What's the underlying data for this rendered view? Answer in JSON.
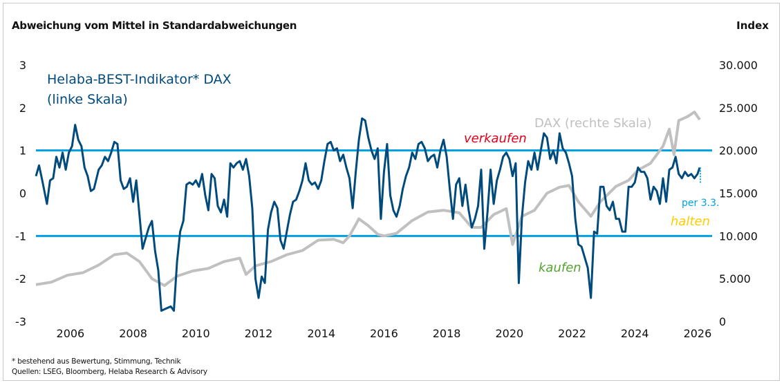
{
  "header": {
    "left_title": "Abweichung vom Mittel in Standardabweichungen",
    "right_title": "Index"
  },
  "footer": {
    "note": "* bestehend aus Bewertung, Stimmung, Technik",
    "sources": "Quellen: LSEG, Bloomberg, Helaba Research & Advisory"
  },
  "colors": {
    "indicator": "#004a7c",
    "dax": "#c0c0c0",
    "threshold": "#009fe3",
    "sell": "#e2001a",
    "buy": "#52a32f",
    "hold": "#ffcc00",
    "asof": "#009fe3"
  },
  "chart_data": {
    "type": "line",
    "title": "Helaba-BEST-Indikator* DAX vs. DAX",
    "xlabel": "",
    "ylabel_left": "Abweichung vom Mittel in Standardabweichungen",
    "ylabel_right": "Index",
    "xlim": [
      2005.0,
      2026.3
    ],
    "ylim_left": [
      -3,
      3
    ],
    "ylim_right": [
      0,
      30000
    ],
    "x_ticks": [
      "2006",
      "2008",
      "2010",
      "2012",
      "2014",
      "2016",
      "2018",
      "2020",
      "2022",
      "2024",
      "2026"
    ],
    "y_ticks_left": [
      "3",
      "2",
      "1",
      "0",
      "-1",
      "-2",
      "-3"
    ],
    "y_ticks_right": [
      "30.000",
      "25.000",
      "20.000",
      "15.000",
      "10.000",
      "5.000",
      "0"
    ],
    "grid": false,
    "thresholds": [
      {
        "value": 1,
        "axis": "left",
        "label": "verkaufen"
      },
      {
        "value": -1,
        "axis": "left",
        "label": "kaufen"
      }
    ],
    "annotations": {
      "indicator_label_line1": "Helaba-BEST-Indikator* DAX",
      "indicator_label_line2": "(linke Skala)",
      "dax_label": "DAX (rechte Skala)",
      "sell": "verkaufen",
      "buy": "kaufen",
      "hold": "halten",
      "asof": "per 3.3."
    },
    "series": [
      {
        "name": "Helaba-BEST-Indikator DAX (linke Skala)",
        "axis": "left",
        "x": [
          2005.0,
          2005.1,
          2005.2,
          2005.35,
          2005.45,
          2005.55,
          2005.65,
          2005.75,
          2005.85,
          2005.95,
          2006.05,
          2006.15,
          2006.25,
          2006.35,
          2006.45,
          2006.55,
          2006.65,
          2006.75,
          2006.85,
          2007.0,
          2007.1,
          2007.2,
          2007.3,
          2007.4,
          2007.5,
          2007.6,
          2007.7,
          2007.8,
          2007.9,
          2008.0,
          2008.1,
          2008.2,
          2008.3,
          2008.4,
          2008.5,
          2008.6,
          2008.7,
          2008.8,
          2008.9,
          2009.0,
          2009.15,
          2009.3,
          2009.4,
          2009.5,
          2009.6,
          2009.7,
          2009.8,
          2009.9,
          2010.0,
          2010.1,
          2010.2,
          2010.3,
          2010.4,
          2010.5,
          2010.6,
          2010.7,
          2010.8,
          2010.9,
          2011.0,
          2011.1,
          2011.2,
          2011.3,
          2011.4,
          2011.5,
          2011.6,
          2011.7,
          2011.8,
          2011.9,
          2012.0,
          2012.1,
          2012.2,
          2012.3,
          2012.4,
          2012.5,
          2012.6,
          2012.7,
          2012.8,
          2012.9,
          2013.0,
          2013.1,
          2013.2,
          2013.3,
          2013.4,
          2013.5,
          2013.6,
          2013.7,
          2013.8,
          2013.9,
          2014.0,
          2014.1,
          2014.2,
          2014.3,
          2014.4,
          2014.5,
          2014.6,
          2014.7,
          2014.8,
          2014.9,
          2015.0,
          2015.1,
          2015.2,
          2015.3,
          2015.4,
          2015.5,
          2015.6,
          2015.7,
          2015.8,
          2015.9,
          2016.0,
          2016.1,
          2016.2,
          2016.3,
          2016.4,
          2016.5,
          2016.6,
          2016.7,
          2016.8,
          2016.9,
          2017.0,
          2017.1,
          2017.2,
          2017.3,
          2017.4,
          2017.5,
          2017.6,
          2017.7,
          2017.8,
          2017.9,
          2018.0,
          2018.1,
          2018.2,
          2018.3,
          2018.4,
          2018.5,
          2018.6,
          2018.7,
          2018.8,
          2018.9,
          2019.0,
          2019.1,
          2019.2,
          2019.3,
          2019.4,
          2019.5,
          2019.6,
          2019.7,
          2019.8,
          2019.9,
          2020.0,
          2020.1,
          2020.2,
          2020.3,
          2020.4,
          2020.5,
          2020.6,
          2020.7,
          2020.8,
          2020.9,
          2021.0,
          2021.1,
          2021.2,
          2021.3,
          2021.4,
          2021.5,
          2021.6,
          2021.7,
          2021.8,
          2021.9,
          2022.0,
          2022.1,
          2022.2,
          2022.3,
          2022.4,
          2022.5,
          2022.6,
          2022.7,
          2022.8,
          2022.9,
          2023.0,
          2023.1,
          2023.2,
          2023.3,
          2023.4,
          2023.5,
          2023.6,
          2023.7,
          2023.8,
          2023.9,
          2024.0,
          2024.1,
          2024.2,
          2024.3,
          2024.4,
          2024.5,
          2024.6,
          2024.7,
          2024.8,
          2024.9,
          2025.0,
          2025.1,
          2025.2,
          2025.3,
          2025.4,
          2025.5,
          2025.6,
          2025.7,
          2025.8,
          2025.9,
          2026.0,
          2026.1,
          2026.17
        ],
        "values": [
          0.4,
          0.65,
          0.3,
          -0.25,
          0.3,
          0.35,
          0.85,
          0.6,
          0.95,
          0.55,
          0.95,
          1.1,
          1.6,
          1.25,
          1.1,
          0.6,
          0.4,
          0.05,
          0.1,
          0.55,
          0.65,
          0.85,
          0.75,
          0.95,
          1.2,
          1.15,
          0.3,
          0.1,
          0.15,
          0.35,
          -0.2,
          0.3,
          -0.5,
          -1.3,
          -1.05,
          -0.8,
          -0.65,
          -1.35,
          -1.8,
          -2.75,
          -2.7,
          -2.65,
          -2.75,
          -1.6,
          -0.9,
          -0.65,
          0.2,
          0.25,
          0.2,
          0.3,
          0.15,
          0.45,
          -0.05,
          -0.4,
          0.45,
          0.35,
          -0.3,
          -0.45,
          -0.15,
          -0.55,
          0.7,
          0.6,
          0.7,
          0.75,
          0.55,
          0.8,
          0.4,
          -0.35,
          -2.0,
          -2.45,
          -1.95,
          -2.1,
          -0.85,
          -0.45,
          -0.2,
          -0.35,
          -1.1,
          -1.3,
          -0.9,
          -0.5,
          -0.2,
          -0.15,
          0.05,
          0.3,
          0.7,
          0.3,
          0.2,
          0.25,
          0.1,
          0.3,
          0.75,
          1.15,
          1.2,
          1.0,
          1.05,
          0.75,
          0.9,
          0.6,
          0.35,
          -0.35,
          0.5,
          1.25,
          1.75,
          1.7,
          1.3,
          1.0,
          0.8,
          1.05,
          -0.6,
          0.5,
          1.15,
          -0.05,
          -0.4,
          -0.55,
          -0.3,
          0.1,
          0.4,
          0.6,
          0.95,
          0.8,
          1.15,
          1.2,
          1.05,
          0.75,
          0.85,
          0.9,
          0.6,
          1.0,
          1.25,
          0.85,
          0.1,
          -0.6,
          0.2,
          0.35,
          -0.3,
          0.2,
          -0.4,
          -0.8,
          -0.6,
          -0.3,
          0.55,
          -1.3,
          -0.45,
          0.55,
          -0.25,
          0.3,
          0.55,
          0.85,
          0.95,
          0.8,
          0.4,
          0.7,
          -2.1,
          -0.55,
          0.25,
          0.75,
          0.55,
          0.95,
          0.55,
          1.0,
          1.4,
          1.3,
          0.8,
          1.0,
          0.7,
          1.4,
          1.05,
          0.95,
          0.7,
          0.4,
          -0.6,
          -1.2,
          -1.25,
          -1.5,
          -1.75,
          -2.45,
          -0.9,
          -0.95,
          0.15,
          0.15,
          -0.3,
          -0.4,
          -0.2,
          -0.6,
          -0.6,
          -0.9,
          -0.9,
          0.15,
          0.15,
          0.25,
          0.6,
          0.5,
          0.5,
          0.35,
          -0.15,
          0.15,
          0.05,
          -0.25,
          0.35,
          -0.2,
          0.55,
          0.6,
          0.85,
          0.45,
          0.35,
          0.5,
          0.4,
          0.45,
          0.35,
          0.45,
          0.6
        ]
      },
      {
        "name": "DAX (rechte Skala)",
        "axis": "right",
        "x": [
          2005.0,
          2005.5,
          2006.0,
          2006.5,
          2007.0,
          2007.5,
          2007.9,
          2008.3,
          2008.7,
          2009.1,
          2009.5,
          2010.0,
          2010.5,
          2011.0,
          2011.5,
          2011.7,
          2012.0,
          2012.5,
          2013.0,
          2013.5,
          2014.0,
          2014.5,
          2014.8,
          2015.0,
          2015.3,
          2015.6,
          2015.9,
          2016.1,
          2016.5,
          2017.0,
          2017.5,
          2018.0,
          2018.5,
          2018.9,
          2019.2,
          2019.6,
          2020.0,
          2020.2,
          2020.5,
          2020.9,
          2021.3,
          2021.7,
          2022.0,
          2022.3,
          2022.7,
          2023.0,
          2023.5,
          2023.9,
          2024.2,
          2024.6,
          2025.0,
          2025.2,
          2025.35,
          2025.5,
          2025.8,
          2026.0,
          2026.17
        ],
        "values": [
          4300,
          4600,
          5400,
          5700,
          6600,
          7800,
          8000,
          7000,
          5000,
          4200,
          5300,
          5900,
          6200,
          7000,
          7400,
          5500,
          6500,
          7000,
          7800,
          8300,
          9500,
          9600,
          9200,
          10000,
          12000,
          11200,
          10200,
          10000,
          10300,
          11800,
          12800,
          13000,
          12700,
          11000,
          11000,
          12500,
          13200,
          9000,
          12300,
          13000,
          15000,
          15700,
          15900,
          14000,
          12300,
          14000,
          15800,
          16500,
          17700,
          18500,
          20500,
          22500,
          19500,
          23500,
          24000,
          24500,
          23600
        ]
      }
    ]
  }
}
